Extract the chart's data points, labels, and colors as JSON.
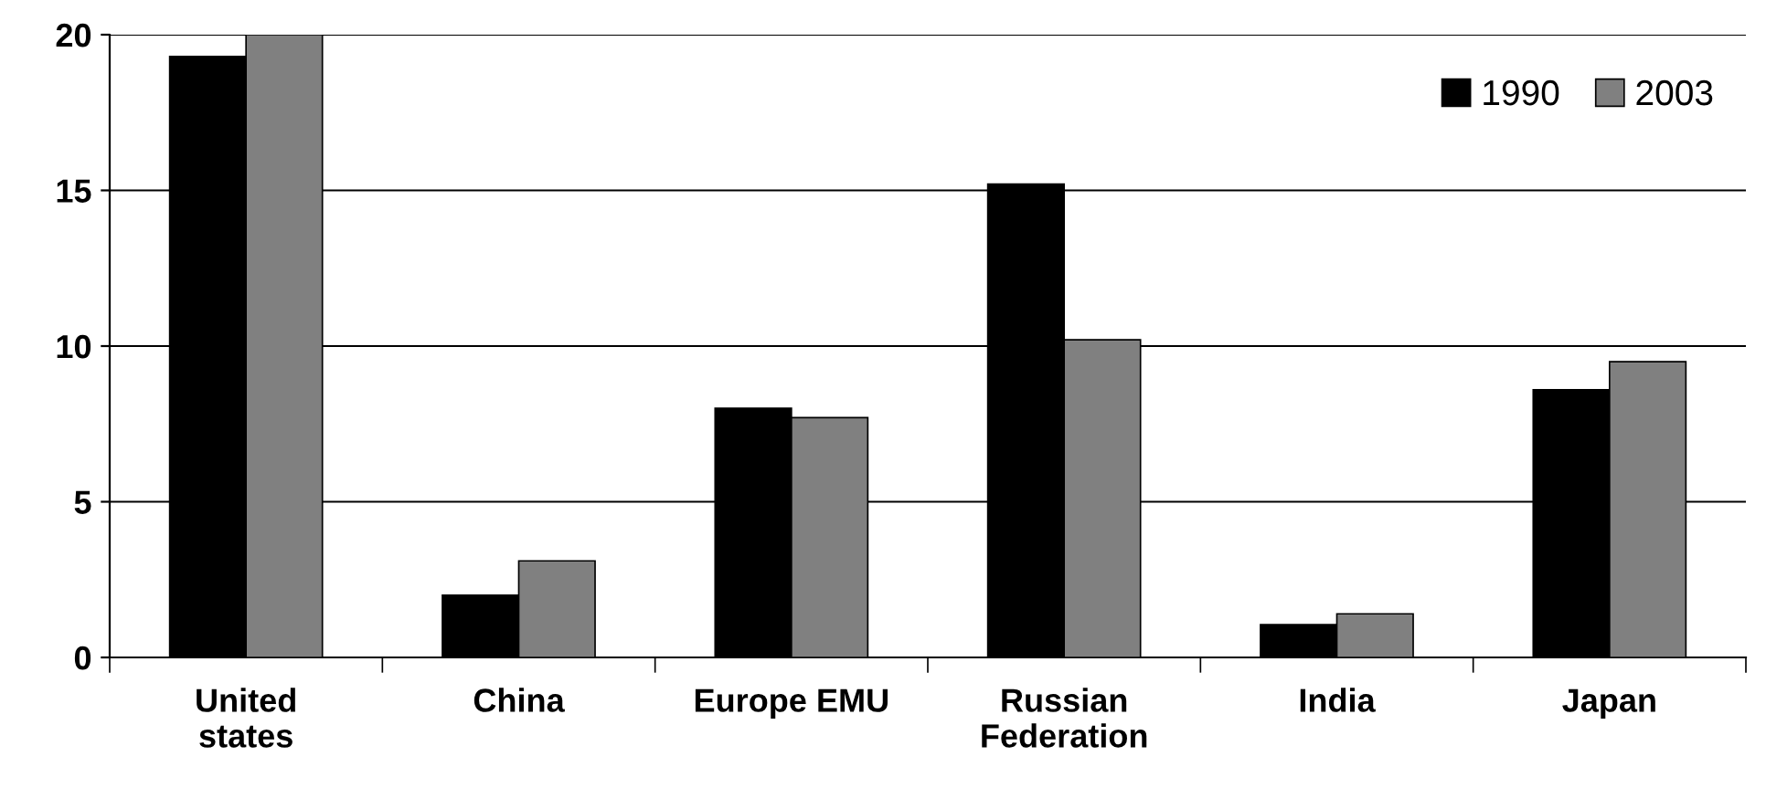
{
  "chart_data": {
    "type": "bar",
    "categories": [
      "United\nstates",
      "China",
      "Europe EMU",
      "Russian\nFederation",
      "India",
      "Japan"
    ],
    "series": [
      {
        "name": "1990",
        "color": "#000000",
        "values": [
          19.3,
          2.0,
          8.0,
          15.2,
          1.05,
          8.6
        ]
      },
      {
        "name": "2003",
        "color": "#808080",
        "values": [
          20.0,
          3.1,
          7.7,
          10.2,
          1.4,
          9.5
        ]
      }
    ],
    "ylim": [
      0,
      20
    ],
    "yticks": [
      0,
      5,
      10,
      15,
      20
    ],
    "grid": "y",
    "legend": "top right"
  }
}
